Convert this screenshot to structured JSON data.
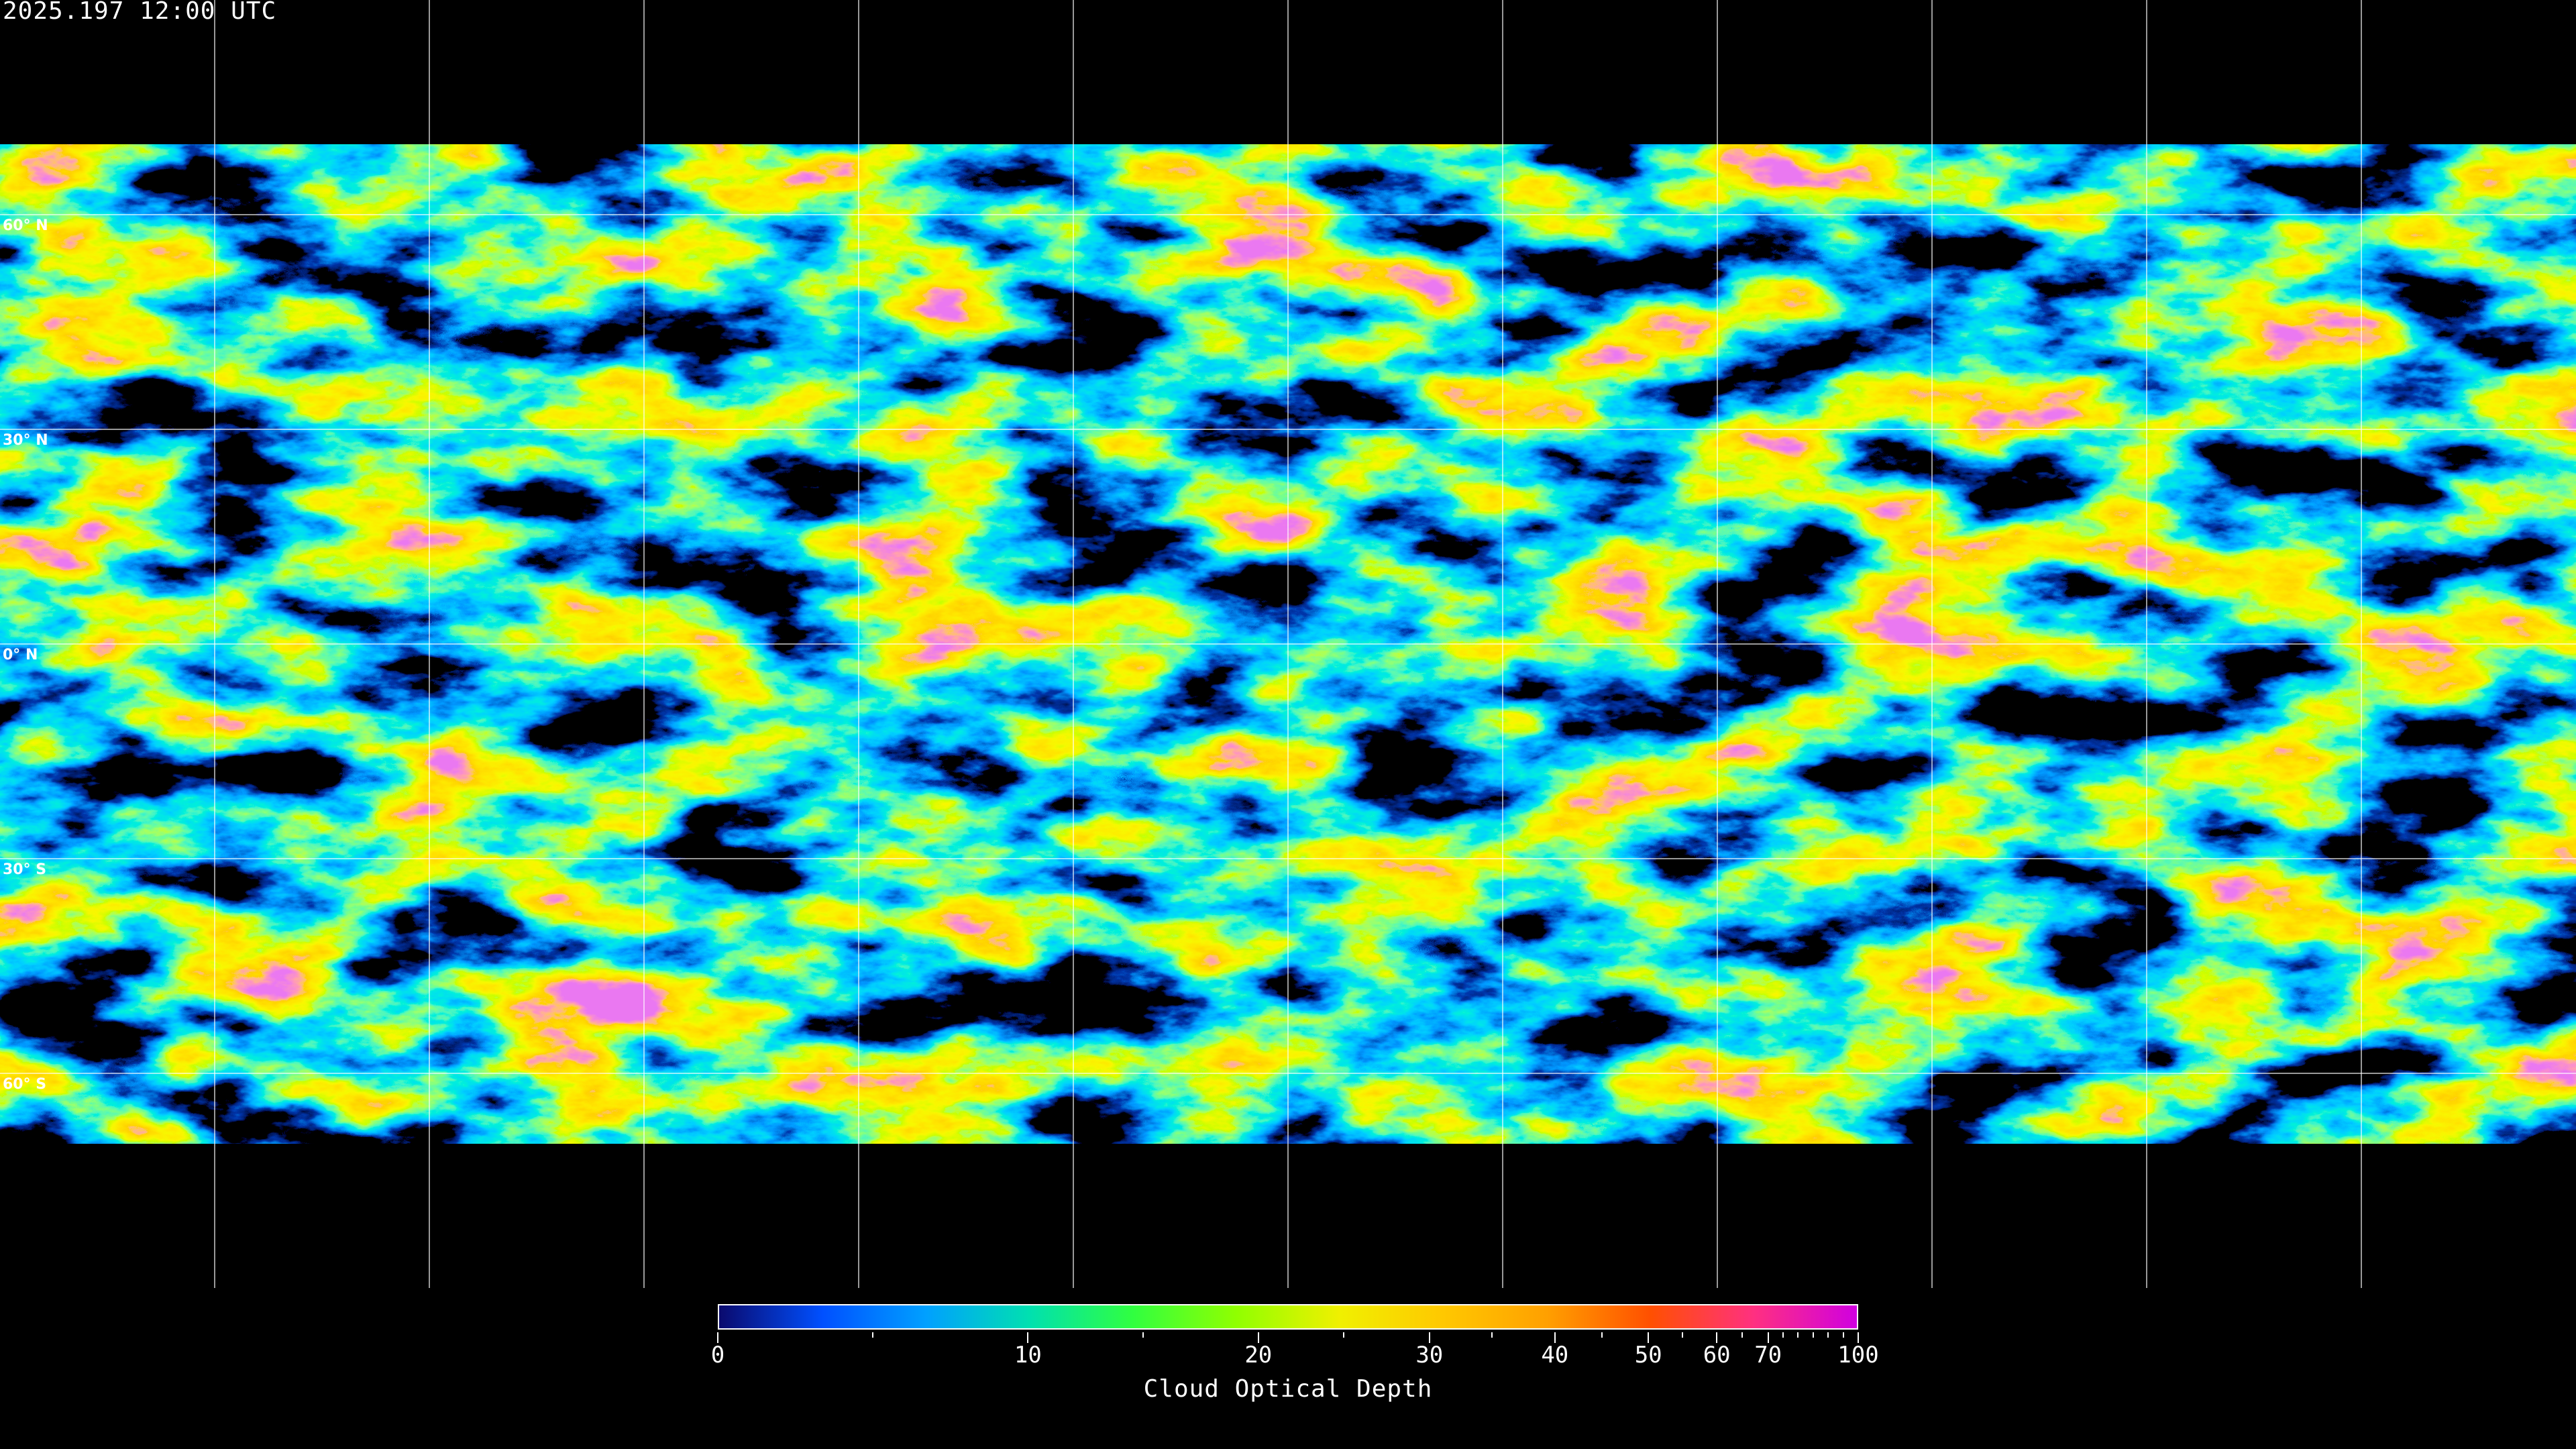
{
  "title": "2025.197 12:00 UTC",
  "map": {
    "projection": "equirectangular",
    "latitude_labels": [
      "60° N",
      "30° N",
      "0° N",
      "30° S",
      "60° S"
    ],
    "gridline_spacing_degrees": 30,
    "gridline_color": "#ffffff",
    "coastline_color": "#ffffff"
  },
  "colorbar": {
    "title": "Cloud Optical Depth",
    "range": [
      0,
      100
    ],
    "tick_labels": [
      "0",
      "10",
      "20",
      "30",
      "40",
      "50",
      "60",
      "70",
      "100"
    ],
    "colors": [
      "#0a0a6e",
      "#0050ff",
      "#00a0ff",
      "#00e0b0",
      "#30ff40",
      "#90ff00",
      "#f0f000",
      "#ffc800",
      "#ffa000",
      "#ff5000",
      "#ff3080",
      "#d000e0"
    ]
  }
}
